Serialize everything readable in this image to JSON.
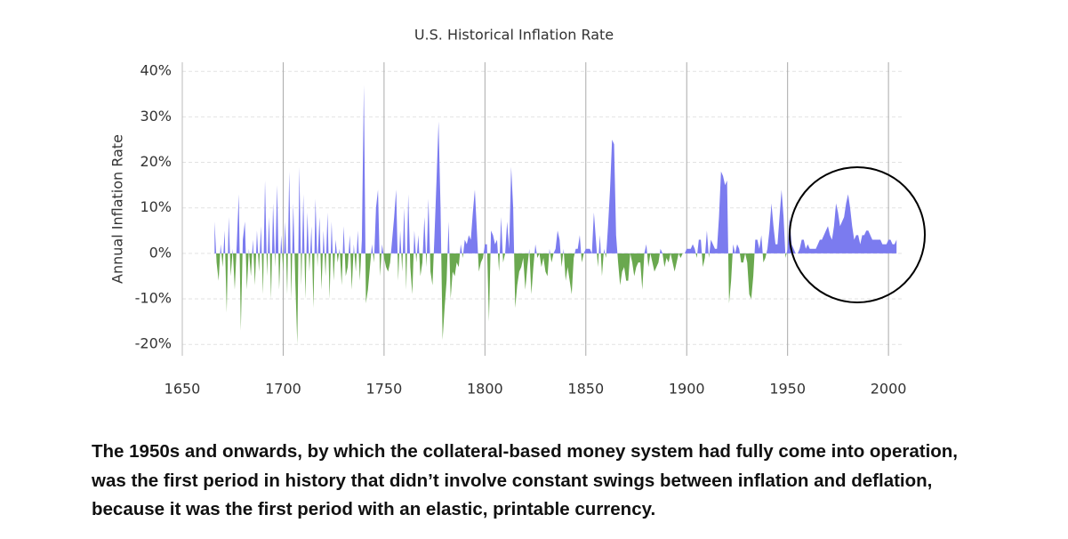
{
  "chart_data": {
    "type": "area",
    "title": "U.S. Historical Inflation Rate",
    "y_label": "Annual Inflation Rate",
    "color": "#7b7bef",
    "negative_color": "#6aa84f",
    "grid": true,
    "xlim": [
      1650,
      2007
    ],
    "xticks": [
      1650,
      1700,
      1750,
      1800,
      1850,
      1900,
      1950,
      2000
    ],
    "ylim": [
      -22.5,
      42
    ],
    "yticks": [
      {
        "value": -20,
        "label": "-20%"
      },
      {
        "value": -10,
        "label": "-10%"
      },
      {
        "value": 0,
        "label": "0%"
      },
      {
        "value": 10,
        "label": "10%"
      },
      {
        "value": 20,
        "label": "20%"
      },
      {
        "value": 30,
        "label": "30%"
      },
      {
        "value": 40,
        "label": "40%"
      }
    ],
    "x": [
      1666,
      1667,
      1668,
      1669,
      1670,
      1671,
      1672,
      1673,
      1674,
      1675,
      1676,
      1677,
      1678,
      1679,
      1680,
      1681,
      1682,
      1683,
      1684,
      1685,
      1686,
      1687,
      1688,
      1689,
      1690,
      1691,
      1692,
      1693,
      1694,
      1695,
      1696,
      1697,
      1698,
      1699,
      1700,
      1701,
      1702,
      1703,
      1704,
      1705,
      1706,
      1707,
      1708,
      1709,
      1710,
      1711,
      1712,
      1713,
      1714,
      1715,
      1716,
      1717,
      1718,
      1719,
      1720,
      1721,
      1722,
      1723,
      1724,
      1725,
      1726,
      1727,
      1728,
      1729,
      1730,
      1731,
      1732,
      1733,
      1734,
      1735,
      1736,
      1737,
      1738,
      1739,
      1740,
      1741,
      1742,
      1743,
      1744,
      1745,
      1746,
      1747,
      1748,
      1749,
      1750,
      1751,
      1752,
      1753,
      1754,
      1755,
      1756,
      1757,
      1758,
      1759,
      1760,
      1761,
      1762,
      1763,
      1764,
      1765,
      1766,
      1767,
      1768,
      1769,
      1770,
      1771,
      1772,
      1773,
      1774,
      1775,
      1776,
      1777,
      1778,
      1779,
      1780,
      1781,
      1782,
      1783,
      1784,
      1785,
      1786,
      1787,
      1788,
      1789,
      1790,
      1791,
      1792,
      1793,
      1794,
      1795,
      1796,
      1797,
      1798,
      1799,
      1800,
      1801,
      1802,
      1803,
      1804,
      1805,
      1806,
      1807,
      1808,
      1809,
      1810,
      1811,
      1812,
      1813,
      1814,
      1815,
      1816,
      1817,
      1818,
      1819,
      1820,
      1821,
      1822,
      1823,
      1824,
      1825,
      1826,
      1827,
      1828,
      1829,
      1830,
      1831,
      1832,
      1833,
      1834,
      1835,
      1836,
      1837,
      1838,
      1839,
      1840,
      1841,
      1842,
      1843,
      1844,
      1845,
      1846,
      1847,
      1848,
      1849,
      1850,
      1851,
      1852,
      1853,
      1854,
      1855,
      1856,
      1857,
      1858,
      1859,
      1860,
      1861,
      1862,
      1863,
      1864,
      1865,
      1866,
      1867,
      1868,
      1869,
      1870,
      1871,
      1872,
      1873,
      1874,
      1875,
      1876,
      1877,
      1878,
      1879,
      1880,
      1881,
      1882,
      1883,
      1884,
      1885,
      1886,
      1887,
      1888,
      1889,
      1890,
      1891,
      1892,
      1893,
      1894,
      1895,
      1896,
      1897,
      1898,
      1899,
      1900,
      1901,
      1902,
      1903,
      1904,
      1905,
      1906,
      1907,
      1908,
      1909,
      1910,
      1911,
      1912,
      1913,
      1914,
      1915,
      1916,
      1917,
      1918,
      1919,
      1920,
      1921,
      1922,
      1923,
      1924,
      1925,
      1926,
      1927,
      1928,
      1929,
      1930,
      1931,
      1932,
      1933,
      1934,
      1935,
      1936,
      1937,
      1938,
      1939,
      1940,
      1941,
      1942,
      1943,
      1944,
      1945,
      1946,
      1947,
      1948,
      1949,
      1950,
      1951,
      1952,
      1953,
      1954,
      1955,
      1956,
      1957,
      1958,
      1959,
      1960,
      1961,
      1962,
      1963,
      1964,
      1965,
      1966,
      1967,
      1968,
      1969,
      1970,
      1971,
      1972,
      1973,
      1974,
      1975,
      1976,
      1977,
      1978,
      1979,
      1980,
      1981,
      1982,
      1983,
      1984,
      1985,
      1986,
      1987,
      1988,
      1989,
      1990,
      1991,
      1992,
      1993,
      1994,
      1995,
      1996,
      1997,
      1998,
      1999,
      2000,
      2001,
      2002,
      2003,
      2004
    ],
    "values": [
      7,
      -2,
      -6,
      2,
      -3,
      5,
      -13,
      8,
      -5,
      1,
      -8,
      2,
      13,
      -17,
      3,
      7,
      -8,
      1,
      -5,
      3,
      -7,
      5,
      -4,
      6,
      -9,
      16,
      -5,
      8,
      -10,
      11,
      -3,
      15,
      -8,
      4,
      -4,
      7,
      -9,
      18,
      -10,
      11,
      -6,
      -20,
      19,
      -7,
      13,
      -10,
      9,
      -4,
      6,
      -12,
      12,
      -3,
      8,
      -8,
      5,
      -5,
      9,
      -10,
      7,
      -6,
      3,
      -2,
      1,
      -7,
      6,
      -5,
      -3,
      4,
      -8,
      2,
      -4,
      5,
      -6,
      3,
      37,
      -11,
      -8,
      -3,
      2,
      -2,
      10,
      14,
      -5,
      2,
      -1,
      -3,
      -4,
      -2,
      3,
      8,
      14,
      -6,
      5,
      -4,
      10,
      -8,
      13,
      -3,
      -9,
      5,
      -2,
      4,
      -5,
      -2,
      8,
      -3,
      12,
      -4,
      -7,
      4,
      16,
      29,
      10,
      -19,
      -12,
      -6,
      7,
      -10,
      -4,
      -5,
      -2,
      -3,
      2,
      -1,
      3,
      2,
      4,
      3,
      9,
      14,
      5,
      -4,
      -2,
      -1,
      2,
      2,
      -15,
      5,
      4,
      2,
      3,
      -4,
      8,
      -2,
      0,
      7,
      1,
      19,
      10,
      -12,
      -7,
      -4,
      -3,
      -1,
      -8,
      -3,
      1,
      -9,
      -3,
      2,
      -1,
      0,
      -3,
      -1,
      -4,
      -5,
      1,
      -2,
      0,
      1,
      5,
      3,
      -3,
      1,
      -6,
      -3,
      -6,
      -9,
      -1,
      1,
      1,
      4,
      -2,
      0,
      1,
      1,
      1,
      0,
      9,
      3,
      -3,
      4,
      -5,
      1,
      -1,
      6,
      14,
      25,
      24,
      4,
      -2,
      -7,
      -4,
      -3,
      -6,
      -6,
      0,
      -2,
      -5,
      -3,
      -2,
      -2,
      -8,
      0,
      2,
      -3,
      0,
      -2,
      -4,
      -3,
      -2,
      1,
      0,
      -3,
      -1,
      -2,
      0,
      -2,
      -4,
      -2,
      0,
      -1,
      0,
      0,
      1,
      1,
      1,
      2,
      1,
      -1,
      3,
      3,
      -3,
      -1,
      5,
      -1,
      3,
      2,
      1,
      1,
      8,
      18,
      17,
      15,
      16,
      -11,
      -6,
      2,
      0,
      2,
      1,
      -2,
      -2,
      0,
      -2,
      -9,
      -10,
      -5,
      3,
      3,
      1,
      4,
      -2,
      -1,
      1,
      5,
      11,
      6,
      2,
      2,
      8,
      14,
      8,
      -1,
      1,
      8,
      2,
      1,
      0,
      0,
      1,
      3,
      3,
      1,
      2,
      1,
      1,
      1,
      1,
      2,
      3,
      3,
      4,
      5,
      6,
      4,
      3,
      6,
      11,
      9,
      6,
      7,
      8,
      11,
      13,
      10,
      6,
      3,
      4,
      4,
      2,
      4,
      4,
      5,
      5,
      4,
      3,
      3,
      3,
      3,
      3,
      2,
      2,
      2,
      3,
      3,
      2,
      2,
      3
    ]
  },
  "caption": "The 1950s and onwards, by which the collateral-based money system had fully come into operation, was the first period in history that didn’t involve constant swings between inflation and deflation, because it was the first period with an elastic, printable currency."
}
